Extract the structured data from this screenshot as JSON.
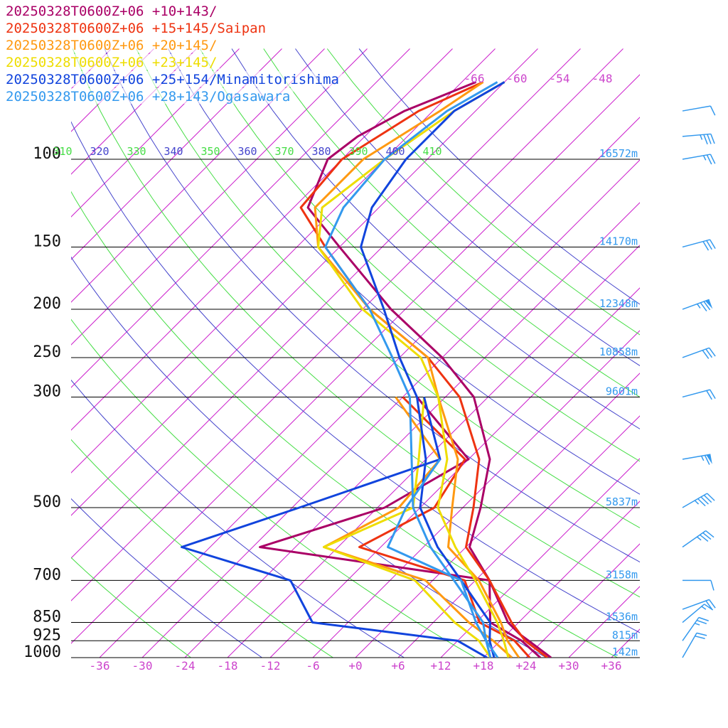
{
  "chart_data": {
    "type": "line",
    "legend": [
      {
        "text": "20250328T0600Z+06 +10+143/",
        "color": "#aa0066"
      },
      {
        "text": "20250328T0600Z+06 +15+145/Saipan",
        "color": "#ee3311"
      },
      {
        "text": "20250328T0600Z+06 +20+145/",
        "color": "#ff9911"
      },
      {
        "text": "20250328T0600Z+06 +23+145/",
        "color": "#eedd00"
      },
      {
        "text": "20250328T0600Z+06 +25+154/Minamitorishima",
        "color": "#1144dd"
      },
      {
        "text": "20250328T0600Z+06 +28+143/Ogasawara",
        "color": "#3399ee"
      }
    ],
    "pressure_levels": [
      {
        "p": 100,
        "label": "100",
        "height": "16572m"
      },
      {
        "p": 150,
        "label": "150",
        "height": "14170m"
      },
      {
        "p": 200,
        "label": "200",
        "height": "12348m"
      },
      {
        "p": 250,
        "label": "250",
        "height": "10858m"
      },
      {
        "p": 300,
        "label": "300",
        "height": "9601m"
      },
      {
        "p": 500,
        "label": "500",
        "height": "5837m"
      },
      {
        "p": 700,
        "label": "700",
        "height": "3158m"
      },
      {
        "p": 850,
        "label": "850",
        "height": "1536m"
      },
      {
        "p": 925,
        "label": "925",
        "height": "815m"
      },
      {
        "p": 1000,
        "label": "1000",
        "height": "142m"
      }
    ],
    "temperature_ticks": [
      {
        "v": -36,
        "label": "-36"
      },
      {
        "v": -30,
        "label": "-30"
      },
      {
        "v": -24,
        "label": "-24"
      },
      {
        "v": -18,
        "label": "-18"
      },
      {
        "v": -12,
        "label": "-12"
      },
      {
        "v": -6,
        "label": "-6"
      },
      {
        "v": 0,
        "label": "+0"
      },
      {
        "v": 6,
        "label": "+6"
      },
      {
        "v": 12,
        "label": "+12"
      },
      {
        "v": 18,
        "label": "+18"
      },
      {
        "v": 24,
        "label": "+24"
      },
      {
        "v": 30,
        "label": "+30"
      },
      {
        "v": 36,
        "label": "+36"
      }
    ],
    "upper_temperature_labels": [
      {
        "v": -66,
        "label": "-66"
      },
      {
        "v": -60,
        "label": "-60"
      },
      {
        "v": -54,
        "label": "-54"
      },
      {
        "v": -48,
        "label": "-48"
      }
    ],
    "theta_labels": [
      {
        "label": "310",
        "color": "#44dd44"
      },
      {
        "label": "320",
        "color": "#4444cc"
      },
      {
        "label": "330",
        "color": "#44dd44"
      },
      {
        "label": "340",
        "color": "#4444cc"
      },
      {
        "label": "350",
        "color": "#44dd44"
      },
      {
        "label": "360",
        "color": "#4444cc"
      },
      {
        "label": "370",
        "color": "#44dd44"
      },
      {
        "label": "380",
        "color": "#4444cc"
      },
      {
        "label": "390",
        "color": "#44dd44"
      },
      {
        "label": "400",
        "color": "#4444cc"
      },
      {
        "label": "410",
        "color": "#44dd44"
      }
    ],
    "xlim": [
      -40,
      40
    ],
    "ylim": [
      1000,
      100
    ],
    "series": [
      {
        "name": "20250328T0600Z+06 +10+143/",
        "color": "#aa0066",
        "temperature": [
          [
            1000,
            27.5
          ],
          [
            925,
            22.0
          ],
          [
            900,
            20.0
          ],
          [
            850,
            16.5
          ],
          [
            700,
            8.0
          ],
          [
            600,
            0.5
          ],
          [
            500,
            -3.5
          ],
          [
            400,
            -9.0
          ],
          [
            300,
            -20.0
          ],
          [
            250,
            -30.0
          ],
          [
            200,
            -44.0
          ],
          [
            150,
            -60.0
          ],
          [
            125,
            -70.0
          ],
          [
            100,
            -74.0
          ],
          [
            90,
            -73.0
          ],
          [
            80,
            -70.0
          ],
          [
            70,
            -64.0
          ]
        ],
        "dewpoint": [
          [
            1000,
            26.0
          ],
          [
            925,
            21.0
          ],
          [
            850,
            14.0
          ],
          [
            700,
            8.0
          ],
          [
            600,
            -29.0
          ],
          [
            500,
            -17.0
          ],
          [
            400,
            -12.0
          ],
          [
            300,
            -28.0
          ]
        ]
      },
      {
        "name": "20250328T0600Z+06 +15+145/Saipan",
        "color": "#ee3311",
        "temperature": [
          [
            1000,
            27.0
          ],
          [
            925,
            21.5
          ],
          [
            850,
            17.0
          ],
          [
            700,
            8.0
          ],
          [
            600,
            0.0
          ],
          [
            500,
            -4.5
          ],
          [
            400,
            -10.5
          ],
          [
            300,
            -22.0
          ],
          [
            250,
            -32.0
          ],
          [
            200,
            -47.0
          ],
          [
            150,
            -62.0
          ],
          [
            125,
            -71.0
          ],
          [
            100,
            -72.0
          ],
          [
            80,
            -68.0
          ],
          [
            70,
            -63.0
          ]
        ],
        "dewpoint": [
          [
            1000,
            24.5
          ],
          [
            925,
            20.0
          ],
          [
            850,
            12.5
          ],
          [
            700,
            4.5
          ],
          [
            600,
            -15.0
          ],
          [
            500,
            -10.0
          ],
          [
            400,
            -12.5
          ],
          [
            300,
            -30.0
          ]
        ]
      },
      {
        "name": "20250328T0600Z+06 +20+145/",
        "color": "#ff9911",
        "temperature": [
          [
            1000,
            23.0
          ],
          [
            925,
            19.0
          ],
          [
            850,
            15.5
          ],
          [
            700,
            6.5
          ],
          [
            600,
            -2.5
          ],
          [
            500,
            -7.5
          ],
          [
            400,
            -13.5
          ],
          [
            300,
            -25.0
          ],
          [
            250,
            -32.0
          ],
          [
            200,
            -47.0
          ],
          [
            150,
            -63.0
          ],
          [
            125,
            -69.0
          ],
          [
            100,
            -69.0
          ],
          [
            80,
            -65.0
          ],
          [
            70,
            -63.0
          ]
        ],
        "dewpoint": [
          [
            1000,
            22.0
          ],
          [
            925,
            17.0
          ],
          [
            850,
            11.0
          ],
          [
            700,
            -1.0
          ],
          [
            600,
            -20.0
          ],
          [
            500,
            -15.0
          ],
          [
            400,
            -16.0
          ],
          [
            300,
            -31.0
          ]
        ]
      },
      {
        "name": "20250328T0600Z+06 +23+145/",
        "color": "#eedd00",
        "temperature": [
          [
            1000,
            21.5
          ],
          [
            925,
            18.5
          ],
          [
            850,
            15.0
          ],
          [
            700,
            6.0
          ],
          [
            600,
            -1.5
          ],
          [
            500,
            -9.5
          ],
          [
            400,
            -15.0
          ],
          [
            300,
            -25.0
          ],
          [
            250,
            -33.0
          ],
          [
            200,
            -48.0
          ],
          [
            150,
            -63.0
          ],
          [
            125,
            -68.0
          ],
          [
            100,
            -66.0
          ],
          [
            80,
            -63.0
          ],
          [
            70,
            -60.0
          ]
        ],
        "dewpoint": [
          [
            1000,
            19.0
          ],
          [
            925,
            15.0
          ],
          [
            850,
            9.0
          ],
          [
            700,
            -2.5
          ],
          [
            600,
            -20.0
          ],
          [
            500,
            -13.0
          ],
          [
            400,
            -19.0
          ],
          [
            300,
            -27.0
          ]
        ]
      },
      {
        "name": "20250328T0600Z+06 +25+154/Minamitorishima",
        "color": "#1144dd",
        "temperature": [
          [
            1000,
            19.5
          ],
          [
            925,
            16.5
          ],
          [
            850,
            14.0
          ],
          [
            700,
            4.0
          ],
          [
            600,
            -4.0
          ],
          [
            500,
            -12.0
          ],
          [
            400,
            -18.0
          ],
          [
            300,
            -28.0
          ],
          [
            250,
            -36.0
          ],
          [
            200,
            -45.0
          ],
          [
            150,
            -57.0
          ],
          [
            125,
            -61.0
          ],
          [
            100,
            -63.0
          ],
          [
            80,
            -63.0
          ],
          [
            70,
            -60.0
          ]
        ],
        "dewpoint": [
          [
            1000,
            18.5
          ],
          [
            925,
            12.0
          ],
          [
            850,
            -11.0
          ],
          [
            700,
            -20.0
          ],
          [
            600,
            -40.0
          ],
          [
            500,
            -29.0
          ],
          [
            400,
            -16.0
          ],
          [
            300,
            -27.0
          ]
        ]
      },
      {
        "name": "20250328T0600Z+06 +28+143/Ogasawara",
        "color": "#3399ee",
        "temperature": [
          [
            1000,
            20.0
          ],
          [
            925,
            16.0
          ],
          [
            850,
            13.0
          ],
          [
            700,
            3.0
          ],
          [
            600,
            -5.0
          ],
          [
            500,
            -13.0
          ],
          [
            400,
            -20.0
          ],
          [
            300,
            -29.0
          ],
          [
            250,
            -37.0
          ],
          [
            200,
            -47.0
          ],
          [
            150,
            -62.0
          ],
          [
            125,
            -65.0
          ],
          [
            100,
            -66.0
          ],
          [
            80,
            -64.0
          ],
          [
            70,
            -61.0
          ]
        ],
        "dewpoint": [
          [
            1000,
            19.0
          ],
          [
            925,
            16.0
          ],
          [
            850,
            12.0
          ],
          [
            700,
            4.0
          ],
          [
            600,
            -11.0
          ],
          [
            500,
            -14.0
          ],
          [
            400,
            -16.0
          ]
        ]
      }
    ],
    "wind_barbs": {
      "color": "#3399ee",
      "levels": [
        {
          "p": 80,
          "dir": 260,
          "kt": 10
        },
        {
          "p": 90,
          "dir": 265,
          "kt": 35
        },
        {
          "p": 100,
          "dir": 260,
          "kt": 25
        },
        {
          "p": 150,
          "dir": 255,
          "kt": 30
        },
        {
          "p": 200,
          "dir": 250,
          "kt": 75
        },
        {
          "p": 250,
          "dir": 250,
          "kt": 30
        },
        {
          "p": 300,
          "dir": 255,
          "kt": 20
        },
        {
          "p": 400,
          "dir": 260,
          "kt": 65
        },
        {
          "p": 500,
          "dir": 240,
          "kt": 45
        },
        {
          "p": 600,
          "dir": 235,
          "kt": 35
        },
        {
          "p": 700,
          "dir": 270,
          "kt": 10
        },
        {
          "p": 800,
          "dir": 250,
          "kt": 20
        },
        {
          "p": 850,
          "dir": 230,
          "kt": 15
        },
        {
          "p": 925,
          "dir": 215,
          "kt": 25
        },
        {
          "p": 1000,
          "dir": 210,
          "kt": 20
        }
      ]
    }
  }
}
